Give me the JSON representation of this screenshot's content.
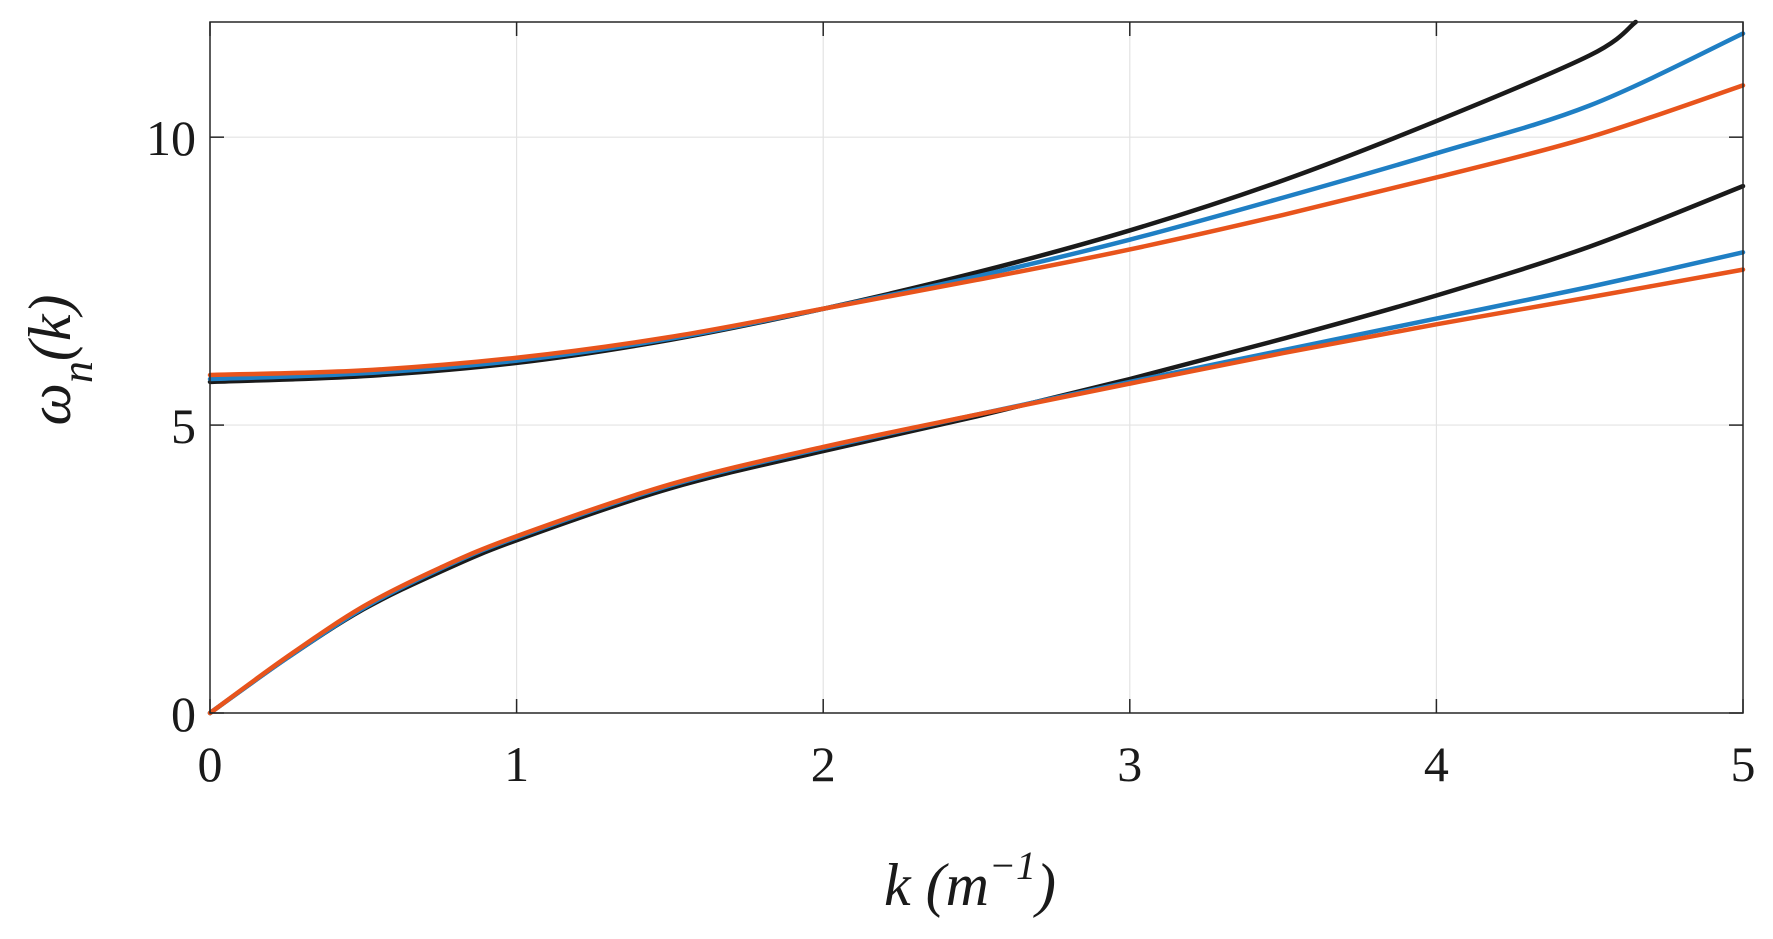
{
  "chart_data": {
    "type": "line",
    "title": "",
    "xlabel_parts": {
      "var": "k",
      "open": " (",
      "unit": "m",
      "exp": "−1",
      "close": ")"
    },
    "ylabel_parts": {
      "sym": "ω",
      "sub": "n",
      "arg": "(k)"
    },
    "xlim": [
      0,
      5
    ],
    "ylim": [
      0,
      12
    ],
    "xticks": [
      0,
      1,
      2,
      3,
      4,
      5
    ],
    "yticks": [
      0,
      5,
      10
    ],
    "grid": true,
    "legend": "none",
    "series": [
      {
        "color": "#1a1a1a",
        "x": [
          0,
          0.5,
          1.0,
          1.5,
          2.0,
          2.5,
          3.0,
          3.5,
          4.0,
          4.5,
          4.65
        ],
        "y": [
          5.75,
          5.85,
          6.08,
          6.48,
          7.02,
          7.65,
          8.38,
          9.25,
          10.28,
          11.42,
          12.0
        ]
      },
      {
        "color": "#1f7fc4",
        "x": [
          0,
          0.5,
          1.0,
          1.5,
          2.0,
          2.5,
          3.0,
          3.5,
          4.0,
          4.5,
          5.0
        ],
        "y": [
          5.8,
          5.9,
          6.12,
          6.5,
          7.02,
          7.58,
          8.22,
          8.95,
          9.72,
          10.55,
          11.8
        ]
      },
      {
        "color": "#e8541c",
        "x": [
          0,
          0.5,
          1.0,
          1.5,
          2.0,
          2.5,
          3.0,
          3.5,
          4.0,
          4.5,
          5.0
        ],
        "y": [
          5.87,
          5.95,
          6.17,
          6.53,
          7.02,
          7.52,
          8.05,
          8.65,
          9.3,
          10.0,
          10.9
        ]
      },
      {
        "color": "#1a1a1a",
        "x": [
          0,
          0.25,
          0.5,
          0.75,
          1.0,
          1.5,
          2.0,
          2.5,
          3.0,
          3.5,
          4.0,
          4.5,
          5.0
        ],
        "y": [
          0,
          0.95,
          1.8,
          2.45,
          3.0,
          3.9,
          4.55,
          5.15,
          5.8,
          6.5,
          7.25,
          8.1,
          9.15
        ]
      },
      {
        "color": "#1f7fc4",
        "x": [
          0,
          0.25,
          0.5,
          0.75,
          1.0,
          1.5,
          2.0,
          2.5,
          3.0,
          3.5,
          4.0,
          4.5,
          5.0
        ],
        "y": [
          0,
          0.95,
          1.82,
          2.5,
          3.05,
          3.95,
          4.6,
          5.18,
          5.75,
          6.3,
          6.85,
          7.4,
          8.0
        ]
      },
      {
        "color": "#e8541c",
        "x": [
          0,
          0.25,
          0.5,
          0.75,
          1.0,
          1.5,
          2.0,
          2.5,
          3.0,
          3.5,
          4.0,
          4.5,
          5.0
        ],
        "y": [
          0,
          0.97,
          1.85,
          2.52,
          3.07,
          3.97,
          4.62,
          5.18,
          5.72,
          6.25,
          6.75,
          7.22,
          7.7
        ]
      }
    ]
  }
}
